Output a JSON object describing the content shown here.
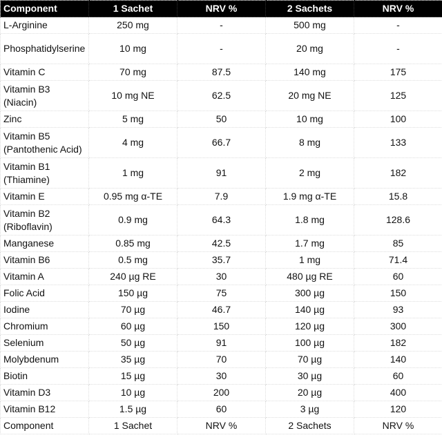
{
  "headers": [
    "Component",
    "1 Sachet",
    "NRV %",
    "2 Sachets",
    "NRV %"
  ],
  "rows": [
    [
      "L-Arginine",
      "250 mg",
      "-",
      "500 mg",
      "-"
    ],
    [
      "Phosphatidylserine",
      "10 mg",
      "-",
      "20 mg",
      "-"
    ],
    [
      "Vitamin C",
      "70 mg",
      "87.5",
      "140 mg",
      "175"
    ],
    [
      "Vitamin B3 (Niacin)",
      "10 mg NE",
      "62.5",
      "20 mg NE",
      "125"
    ],
    [
      "Zinc",
      "5 mg",
      "50",
      "10 mg",
      "100"
    ],
    [
      "Vitamin B5 (Pantothenic Acid)",
      "4 mg",
      "66.7",
      "8 mg",
      "133"
    ],
    [
      "Vitamin B1 (Thiamine)",
      "1 mg",
      "91",
      "2 mg",
      "182"
    ],
    [
      "Vitamin E",
      "0.95 mg α-TE",
      "7.9",
      "1.9 mg α-TE",
      "15.8"
    ],
    [
      "Vitamin B2 (Riboflavin)",
      "0.9 mg",
      "64.3",
      "1.8 mg",
      "128.6"
    ],
    [
      "Manganese",
      "0.85 mg",
      "42.5",
      "1.7 mg",
      "85"
    ],
    [
      "Vitamin B6",
      "0.5 mg",
      "35.7",
      "1 mg",
      "71.4"
    ],
    [
      "Vitamin A",
      "240 µg RE",
      "30",
      "480 µg RE",
      "60"
    ],
    [
      "Folic Acid",
      "150 µg",
      "75",
      "300 µg",
      "150"
    ],
    [
      "Iodine",
      "70 µg",
      "46.7",
      "140 µg",
      "93"
    ],
    [
      "Chromium",
      "60 µg",
      "150",
      "120 µg",
      "300"
    ],
    [
      "Selenium",
      "50 µg",
      "91",
      "100 µg",
      "182"
    ],
    [
      "Molybdenum",
      "35 µg",
      "70",
      "70 µg",
      "140"
    ],
    [
      "Biotin",
      "15 µg",
      "30",
      "30 µg",
      "60"
    ],
    [
      "Vitamin D3",
      "10 µg",
      "200",
      "20 µg",
      "400"
    ],
    [
      "Vitamin B12",
      "1.5 µg",
      "60",
      "3 µg",
      "120"
    ]
  ],
  "footer": [
    "Component",
    "1 Sachet",
    "NRV %",
    "2 Sachets",
    "NRV %"
  ],
  "colors": {
    "header_bg": "#000000",
    "header_text": "#ffffff"
  }
}
